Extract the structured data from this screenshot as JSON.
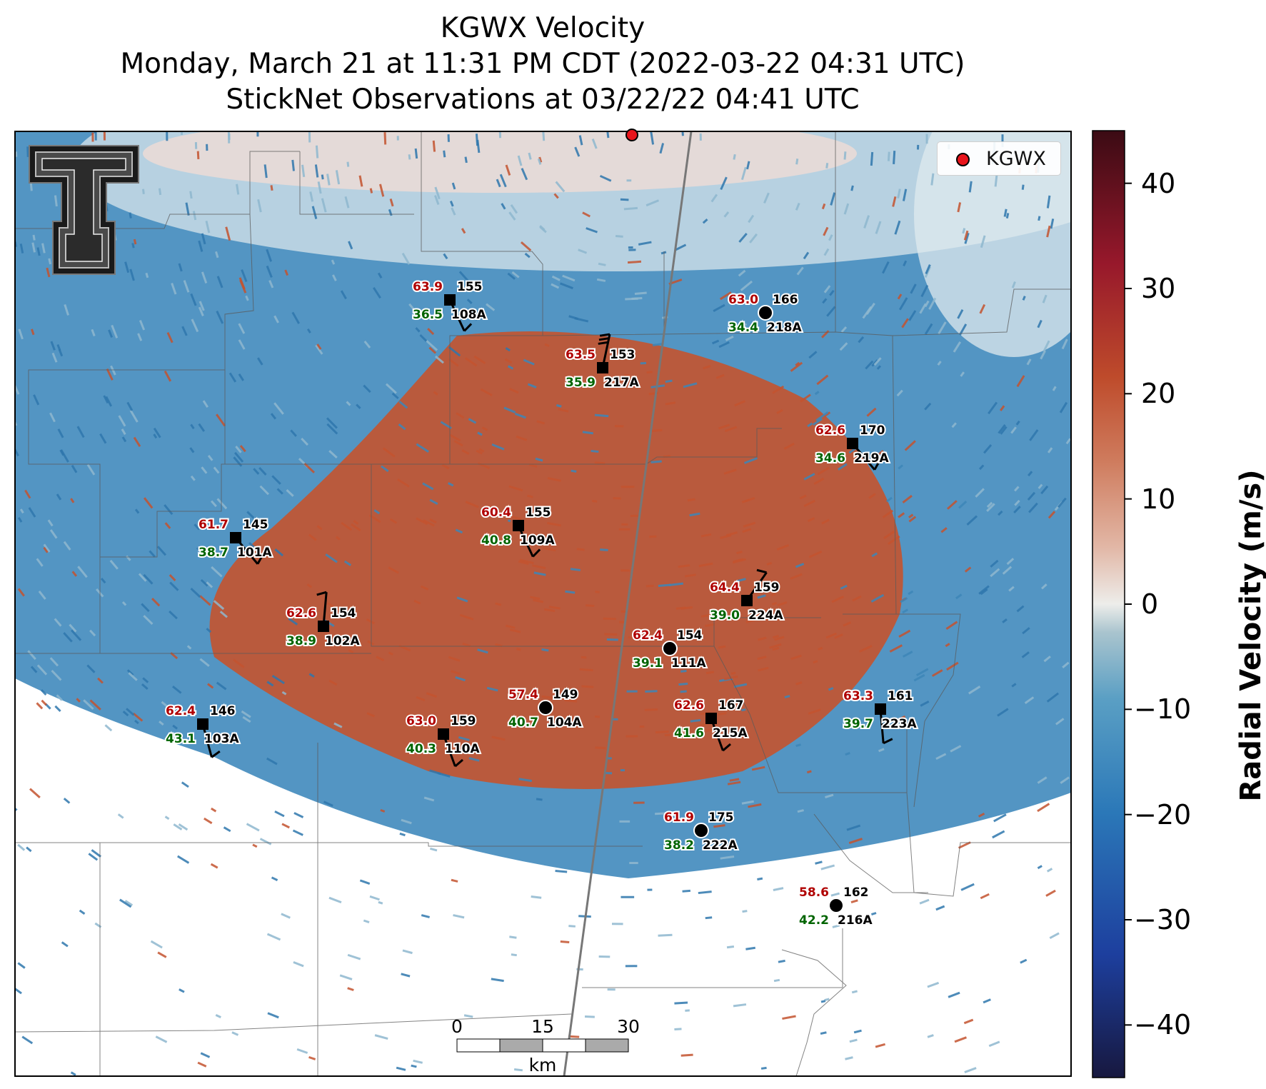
{
  "title": {
    "line1": "KGWX Velocity",
    "line2": "Monday, March 21 at 11:31 PM CDT (2022-03-22 04:31 UTC)",
    "line3": "StickNet Observations at 03/22/22 04:41 UTC"
  },
  "legend": {
    "label": "KGWX",
    "marker_color": "#e8141b"
  },
  "colorbar": {
    "label": "Radial Velocity (m/s)",
    "ticks": [
      "40",
      "30",
      "20",
      "10",
      "0",
      "−10",
      "−20",
      "−30",
      "−40"
    ],
    "tick_values": [
      40,
      30,
      20,
      10,
      0,
      -10,
      -20,
      -30,
      -40
    ],
    "range": [
      -45,
      45
    ]
  },
  "scale_bar": {
    "labels": [
      "0",
      "15",
      "30"
    ],
    "unit": "km"
  },
  "colors": {
    "inbound": "#3d86b8",
    "outbound": "#c4532f",
    "temperature_text": "#b00000",
    "dewpoint_text": "#006400",
    "radar_marker": "#e8141b"
  },
  "stations": [
    {
      "id": "108A",
      "temp": "63.9",
      "dew": "36.5",
      "pressure": "155",
      "marker": "square",
      "wind_dir": 335,
      "barbs": 1
    },
    {
      "id": "218A",
      "temp": "63.0",
      "dew": "34.4",
      "pressure": "166",
      "marker": "circle",
      "wind_dir": null,
      "barbs": 0
    },
    {
      "id": "217A",
      "temp": "63.5",
      "dew": "35.9",
      "pressure": "153",
      "marker": "square",
      "wind_dir": 192,
      "barbs": 3
    },
    {
      "id": "219A",
      "temp": "62.6",
      "dew": "34.6",
      "pressure": "170",
      "marker": "square",
      "wind_dir": 320,
      "barbs": 1
    },
    {
      "id": "101A",
      "temp": "61.7",
      "dew": "38.7",
      "pressure": "145",
      "marker": "square",
      "wind_dir": 320,
      "barbs": 1
    },
    {
      "id": "109A",
      "temp": "60.4",
      "dew": "40.8",
      "pressure": "155",
      "marker": "square",
      "wind_dir": 335,
      "barbs": 1
    },
    {
      "id": "224A",
      "temp": "64.4",
      "dew": "39.0",
      "pressure": "159",
      "marker": "square",
      "wind_dir": 215,
      "barbs": 1
    },
    {
      "id": "102A",
      "temp": "62.6",
      "dew": "38.9",
      "pressure": "154",
      "marker": "square",
      "wind_dir": 185,
      "barbs": 1
    },
    {
      "id": "111A",
      "temp": "62.4",
      "dew": "39.1",
      "pressure": "154",
      "marker": "circle",
      "wind_dir": null,
      "barbs": 0
    },
    {
      "id": "104A",
      "temp": "57.4",
      "dew": "40.7",
      "pressure": "149",
      "marker": "circle",
      "wind_dir": null,
      "barbs": 0
    },
    {
      "id": "215A",
      "temp": "62.6",
      "dew": "41.6",
      "pressure": "167",
      "marker": "square",
      "wind_dir": 340,
      "barbs": 1
    },
    {
      "id": "223A",
      "temp": "63.3",
      "dew": "39.7",
      "pressure": "161",
      "marker": "square",
      "wind_dir": 355,
      "barbs": 1
    },
    {
      "id": "103A",
      "temp": "62.4",
      "dew": "43.1",
      "pressure": "146",
      "marker": "square",
      "wind_dir": 345,
      "barbs": 1
    },
    {
      "id": "110A",
      "temp": "63.0",
      "dew": "40.3",
      "pressure": "159",
      "marker": "square",
      "wind_dir": 340,
      "barbs": 1
    },
    {
      "id": "222A",
      "temp": "61.9",
      "dew": "38.2",
      "pressure": "175",
      "marker": "circle",
      "wind_dir": null,
      "barbs": 0
    },
    {
      "id": "216A",
      "temp": "58.6",
      "dew": "42.2",
      "pressure": "162",
      "marker": "circle",
      "wind_dir": null,
      "barbs": 0
    }
  ]
}
